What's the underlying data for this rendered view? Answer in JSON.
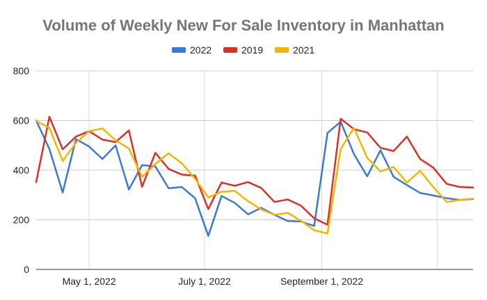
{
  "chart_data": {
    "type": "line",
    "title": "Volume of Weekly New For Sale Inventory in Manhattan",
    "xlabel": "",
    "ylabel": "",
    "ylim": [
      0,
      800
    ],
    "yticks": [
      "0",
      "200",
      "400",
      "600",
      "800"
    ],
    "xticks": [
      "May 1, 2022",
      "July 1, 2022",
      "September 1, 2022"
    ],
    "grid": true,
    "legend_position": "top",
    "x_dates": [
      "2022-04-03",
      "2022-04-10",
      "2022-04-17",
      "2022-04-24",
      "2022-05-01",
      "2022-05-08",
      "2022-05-15",
      "2022-05-22",
      "2022-05-29",
      "2022-06-05",
      "2022-06-12",
      "2022-06-19",
      "2022-06-26",
      "2022-07-03",
      "2022-07-10",
      "2022-07-17",
      "2022-07-24",
      "2022-07-31",
      "2022-08-07",
      "2022-08-14",
      "2022-08-21",
      "2022-08-28",
      "2022-09-04",
      "2022-09-11",
      "2022-09-18",
      "2022-09-25",
      "2022-10-02",
      "2022-10-09",
      "2022-10-16",
      "2022-10-23",
      "2022-10-30",
      "2022-11-06",
      "2022-11-13",
      "2022-11-20"
    ],
    "series": [
      {
        "name": "2022",
        "color": "#3b78d8",
        "values": [
          600,
          485,
          310,
          525,
          495,
          445,
          500,
          322,
          420,
          415,
          327,
          332,
          287,
          135,
          296,
          268,
          222,
          248,
          220,
          195,
          193,
          175,
          550,
          595,
          465,
          375,
          480,
          373,
          340,
          308,
          298,
          287,
          280,
          283
        ]
      },
      {
        "name": "2019",
        "color": "#d93025",
        "values": [
          352,
          615,
          484,
          535,
          557,
          523,
          513,
          560,
          333,
          470,
          405,
          382,
          378,
          243,
          350,
          337,
          352,
          328,
          272,
          282,
          257,
          206,
          180,
          607,
          565,
          552,
          490,
          477,
          535,
          445,
          410,
          345,
          332,
          330
        ]
      },
      {
        "name": "2021",
        "color": "#f4b400",
        "values": [
          598,
          570,
          437,
          510,
          557,
          568,
          520,
          487,
          373,
          425,
          468,
          428,
          365,
          290,
          313,
          317,
          275,
          242,
          220,
          228,
          196,
          158,
          145,
          485,
          570,
          450,
          395,
          413,
          350,
          397,
          332,
          272,
          280,
          285
        ]
      }
    ]
  }
}
